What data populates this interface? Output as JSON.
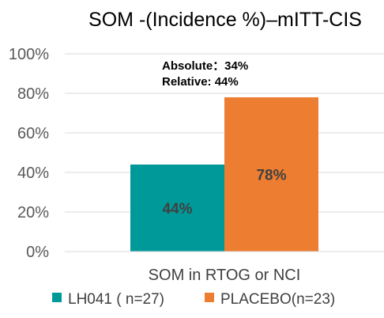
{
  "chart_data": {
    "type": "bar",
    "title": "SOM -(Incidence %)–mITT-CIS",
    "categories": [
      "SOM in RTOG or NCI"
    ],
    "series": [
      {
        "name": "LH041 ( n=27)",
        "values": [
          44
        ],
        "color": "#009999",
        "data_label": "44%"
      },
      {
        "name": "PLACEBO(n=23)",
        "values": [
          78
        ],
        "color": "#ED7D31",
        "data_label": "78%"
      }
    ],
    "ylim": [
      0,
      100
    ],
    "yticks": [
      "0%",
      "20%",
      "40%",
      "60%",
      "80%",
      "100%"
    ],
    "ytick_values": [
      0,
      20,
      40,
      60,
      80,
      100
    ],
    "grid": true,
    "legend_position": "bottom",
    "annotations": [
      "Absolute：34%",
      "Relative: 44%"
    ]
  }
}
